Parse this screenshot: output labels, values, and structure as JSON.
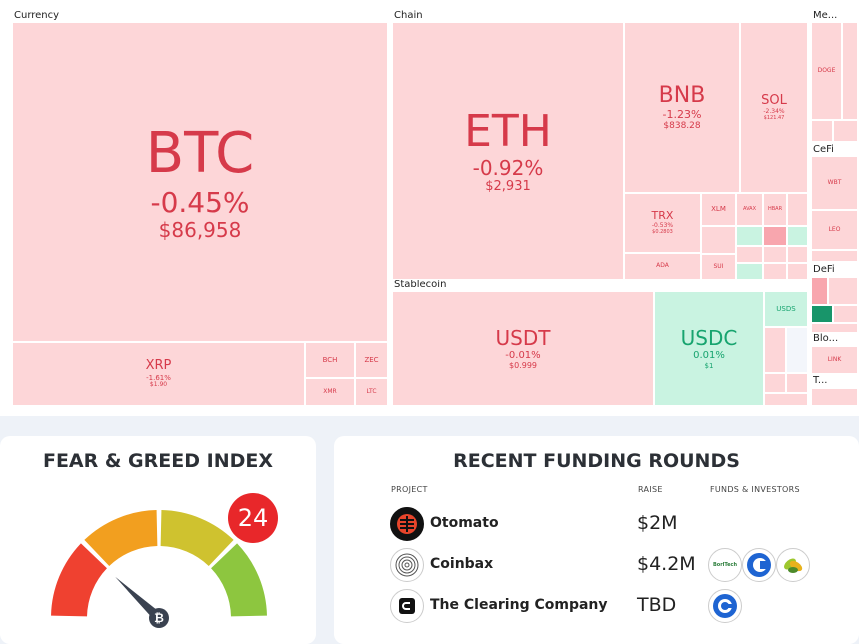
{
  "treemap": {
    "sections": {
      "currency": "Currency",
      "chain": "Chain",
      "meme": "Me...",
      "cefi": "CeFi",
      "defi": "DeFi",
      "stablecoin": "Stablecoin",
      "blockchain": "Blo...",
      "misc": "T..."
    },
    "btc": {
      "symbol": "BTC",
      "change": "-0.45%",
      "price": "$86,958"
    },
    "xrp": {
      "symbol": "XRP",
      "change": "-1.61%",
      "price": "$1.90"
    },
    "bch": {
      "symbol": "BCH"
    },
    "zec": {
      "symbol": "ZEC"
    },
    "xmr": {
      "symbol": "XMR"
    },
    "ltc": {
      "symbol": "LTC"
    },
    "eth": {
      "symbol": "ETH",
      "change": "-0.92%",
      "price": "$2,931"
    },
    "bnb": {
      "symbol": "BNB",
      "change": "-1.23%",
      "price": "$838.28"
    },
    "sol": {
      "symbol": "SOL",
      "change": "-2.34%",
      "price": "$121.47"
    },
    "trx": {
      "symbol": "TRX",
      "change": "-0.53%",
      "price": "$0.2803"
    },
    "xlm": {
      "symbol": "XLM"
    },
    "avax": {
      "symbol": "AVAX"
    },
    "hbar": {
      "symbol": "HBAR"
    },
    "sui": {
      "symbol": "SUI"
    },
    "ada": {
      "symbol": "ADA"
    },
    "usdt": {
      "symbol": "USDT",
      "change": "-0.01%",
      "price": "$0.999"
    },
    "usdc": {
      "symbol": "USDC",
      "change": "0.01%",
      "price": "$1"
    },
    "usds": {
      "symbol": "USDS"
    },
    "doge": {
      "symbol": "DOGE"
    },
    "wbt": {
      "symbol": "WBT"
    },
    "leo": {
      "symbol": "LEO"
    },
    "link": {
      "symbol": "LINK"
    }
  },
  "fear_greed": {
    "title": "FEAR & GREED INDEX",
    "value": 24,
    "segment_colors": [
      "#ef4130",
      "#f29f1f",
      "#cfc22f",
      "#8dc63f"
    ],
    "needle_color": "#3a4250",
    "icon": "bitcoin-icon"
  },
  "funding": {
    "title": "RECENT FUNDING ROUNDS",
    "headers": {
      "project": "PROJECT",
      "raise": "RAISE",
      "investors": "FUNDS & INVESTORS"
    },
    "rows": [
      {
        "project": "Otomato",
        "raise": "$2M"
      },
      {
        "project": "Coinbax",
        "raise": "$4.2M",
        "investor_label": "BorlTech"
      },
      {
        "project": "The Clearing Company",
        "raise": "TBD"
      }
    ]
  }
}
